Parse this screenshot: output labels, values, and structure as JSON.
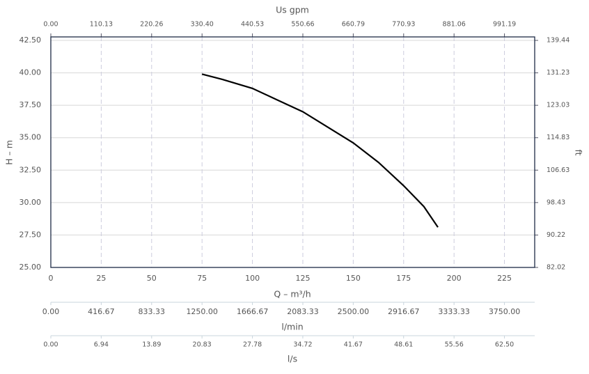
{
  "chart_data": {
    "type": "line",
    "xlabel": "Q – m³/h",
    "ylabel": "H – m",
    "y2label": "ft",
    "x2label": "Us gpm",
    "x": [
      75,
      85,
      100,
      112.5,
      125,
      137.5,
      150,
      162.5,
      175,
      185,
      192
    ],
    "values": [
      39.9,
      39.5,
      38.8,
      37.9,
      37.0,
      35.8,
      34.6,
      33.1,
      31.3,
      29.7,
      28.1
    ],
    "color": "#000000",
    "xlim": [
      0,
      240
    ],
    "xticks": [
      0,
      25,
      50,
      75,
      100,
      125,
      150,
      175,
      200,
      225
    ],
    "ylim": [
      25,
      42.5
    ],
    "yticks": [
      {
        "value": 25,
        "label": "25.00"
      },
      {
        "value": 27.5,
        "label": "27.50"
      },
      {
        "value": 30,
        "label": "30.00"
      },
      {
        "value": 32.5,
        "label": "32.50"
      },
      {
        "value": 35,
        "label": "35.00"
      },
      {
        "value": 37.5,
        "label": "37.50"
      },
      {
        "value": 40,
        "label": "40.00"
      },
      {
        "value": 42.5,
        "label": "42.50"
      }
    ],
    "y2lim": [
      82.02,
      139.44
    ],
    "y2ticks": [
      82.02,
      90.22,
      98.43,
      106.63,
      114.83,
      123.03,
      131.23,
      139.44
    ],
    "x2lim": [
      0,
      1057.25
    ],
    "x2ticks": [
      {
        "value": 0,
        "label": "0.00"
      },
      110.13,
      220.26,
      {
        "value": 330.4,
        "label": "330.40"
      },
      440.53,
      550.66,
      660.79,
      770.93,
      881.06,
      991.19
    ],
    "extra_x_axes": [
      {
        "label": "l/min",
        "lim": [
          0,
          4000
        ],
        "ticks": [
          {
            "value": 0,
            "label": "0.00"
          },
          416.67,
          833.33,
          {
            "value": 1250,
            "label": "1250.00"
          },
          1666.67,
          2083.33,
          {
            "value": 2500,
            "label": "2500.00"
          },
          2916.67,
          3333.33,
          {
            "value": 3750,
            "label": "3750.00"
          }
        ]
      },
      {
        "label": "l/s",
        "lim": [
          0,
          66.67
        ],
        "ticks": [
          {
            "value": 0,
            "label": "0.00"
          },
          6.94,
          13.89,
          20.83,
          27.78,
          34.72,
          41.67,
          48.61,
          55.56,
          {
            "value": 62.5,
            "label": "62.50"
          }
        ]
      }
    ],
    "grid": true
  }
}
